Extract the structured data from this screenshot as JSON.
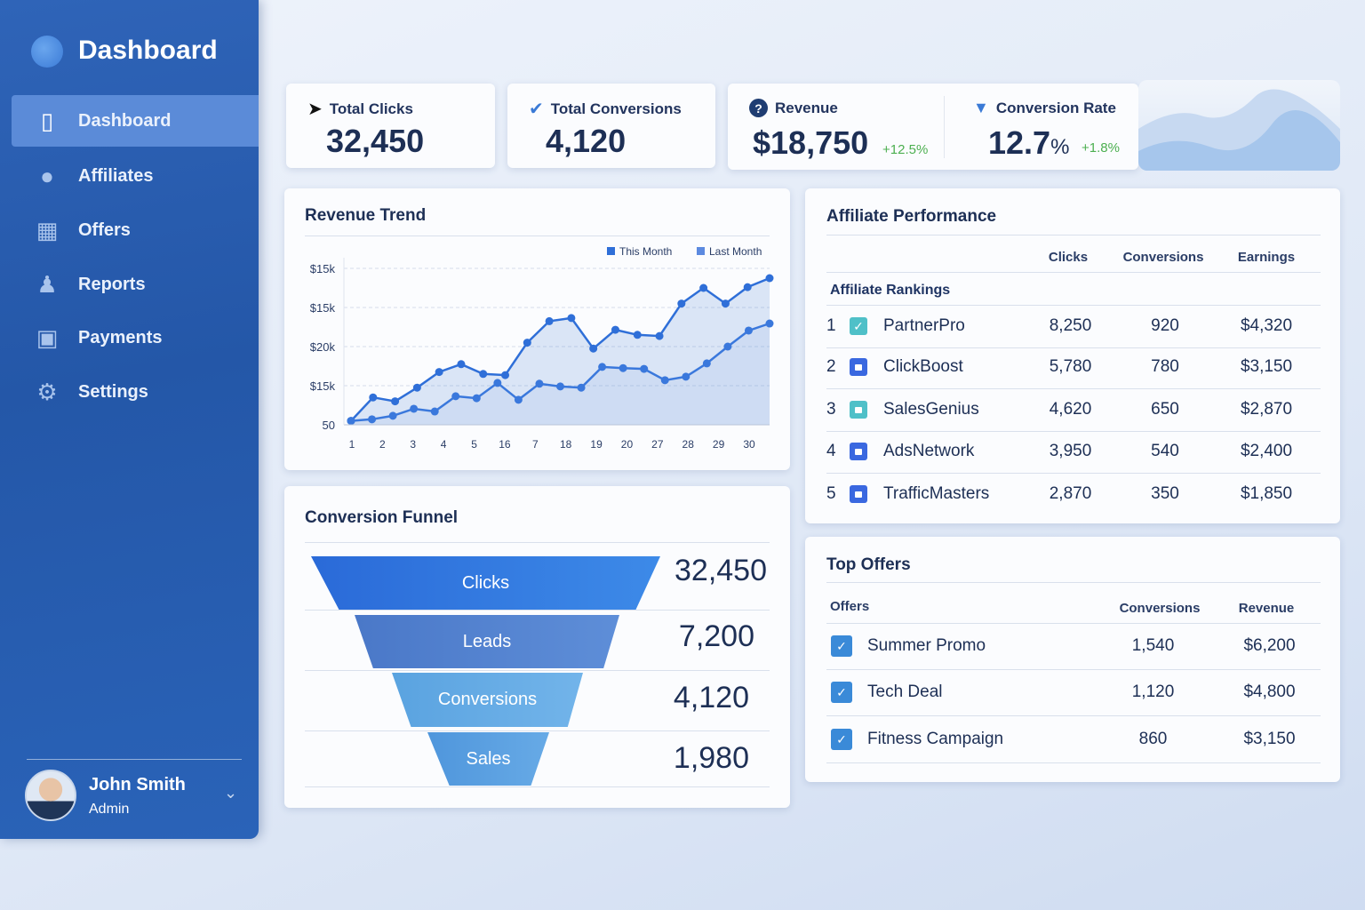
{
  "sidebar": {
    "title": "Dashboard",
    "items": [
      {
        "label": "Dashboard",
        "icon": "chat-bubble-icon",
        "active": true
      },
      {
        "label": "Affiliates",
        "icon": "user-icon"
      },
      {
        "label": "Offers",
        "icon": "box-icon"
      },
      {
        "label": "Reports",
        "icon": "people-icon"
      },
      {
        "label": "Payments",
        "icon": "wallet-icon"
      },
      {
        "label": "Settings",
        "icon": "gear-icon"
      }
    ],
    "user": {
      "name": "John Smith",
      "role": "Admin"
    }
  },
  "kpis": {
    "clicks": {
      "label": "Total Clicks",
      "value": "32,450"
    },
    "conversions": {
      "label": "Total Conversions",
      "value": "4,120"
    },
    "revenue": {
      "label": "Revenue",
      "value": "$18,750",
      "delta": "+12.5%"
    },
    "rate": {
      "label": "Conversion Rate",
      "value": "12.7",
      "unit": "%",
      "delta": "+1.8%"
    }
  },
  "colors": {
    "accent": "#2f6fd8",
    "positive": "#4caf50",
    "sidebar": "#2457a8"
  },
  "chart_data": {
    "type": "line",
    "title": "Revenue Trend",
    "legend": [
      "This Month",
      "Last Month"
    ],
    "legend_position": "top-right",
    "grid": true,
    "yticks": [
      "50",
      "$15k",
      "$20k",
      "$15k",
      "$15k"
    ],
    "xticks": [
      "1",
      "2",
      "3",
      "4",
      "5",
      "16",
      "7",
      "18",
      "19",
      "20",
      "27",
      "28",
      "29",
      "30"
    ],
    "series": [
      {
        "name": "This Month",
        "values": [
          0.1,
          0.7,
          0.6,
          0.95,
          1.35,
          1.55,
          1.3,
          1.27,
          2.1,
          2.65,
          2.73,
          1.95,
          2.43,
          2.3,
          2.27,
          3.1,
          3.5,
          3.1,
          3.52,
          3.75
        ]
      },
      {
        "name": "Last Month",
        "values": [
          0.1,
          0.14,
          0.23,
          0.41,
          0.34,
          0.73,
          0.68,
          1.07,
          0.64,
          1.05,
          0.98,
          0.95,
          1.48,
          1.45,
          1.43,
          1.14,
          1.23,
          1.57,
          2.0,
          2.41,
          2.59
        ]
      }
    ],
    "ylim": [
      0,
      4
    ]
  },
  "funnel": {
    "title": "Conversion Funnel",
    "stages": [
      {
        "label": "Clicks",
        "value": "32,450"
      },
      {
        "label": "Leads",
        "value": "7,200"
      },
      {
        "label": "Conversions",
        "value": "4,120"
      },
      {
        "label": "Sales",
        "value": "1,980"
      }
    ]
  },
  "affiliates": {
    "title": "Affiliate Performance",
    "subtitle": "Affiliate Rankings",
    "columns": [
      "Clicks",
      "Conversions",
      "Earnings"
    ],
    "rows": [
      {
        "rank": "1",
        "name": "PartnerPro",
        "clicks": "8,250",
        "conversions": "920",
        "earnings": "$4,320",
        "checked": true
      },
      {
        "rank": "2",
        "name": "ClickBoost",
        "clicks": "5,780",
        "conversions": "780",
        "earnings": "$3,150"
      },
      {
        "rank": "3",
        "name": "SalesGenius",
        "clicks": "4,620",
        "conversions": "650",
        "earnings": "$2,870"
      },
      {
        "rank": "4",
        "name": "AdsNetwork",
        "clicks": "3,950",
        "conversions": "540",
        "earnings": "$2,400"
      },
      {
        "rank": "5",
        "name": "TrafficMasters",
        "clicks": "2,870",
        "conversions": "350",
        "earnings": "$1,850"
      }
    ]
  },
  "offers": {
    "title": "Top Offers",
    "columns": [
      "Offers",
      "Conversions",
      "Revenue"
    ],
    "rows": [
      {
        "name": "Summer Promo",
        "conversions": "1,540",
        "revenue": "$6,200"
      },
      {
        "name": "Tech Deal",
        "conversions": "1,120",
        "revenue": "$4,800"
      },
      {
        "name": "Fitness Campaign",
        "conversions": "860",
        "revenue": "$3,150"
      }
    ]
  }
}
